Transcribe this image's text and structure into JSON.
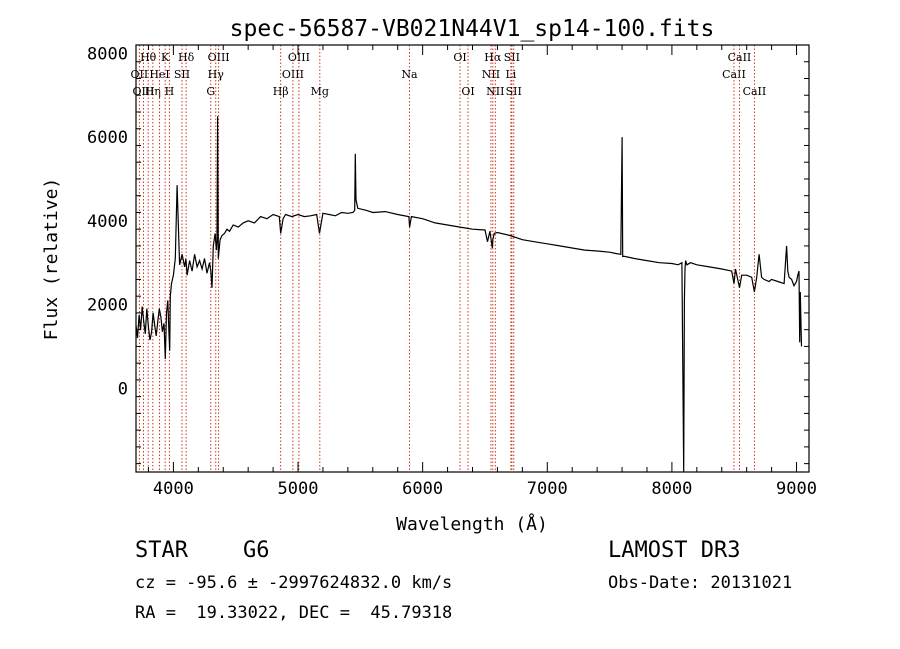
{
  "chart_data": {
    "type": "line",
    "title": "spec-56587-VB021N44V1_sp14-100.fits",
    "xlabel": "Wavelength (Å)",
    "ylabel": "Flux (relative)",
    "xlim": [
      3700,
      9100
    ],
    "ylim": [
      -2000,
      8200
    ],
    "xticks": [
      4000,
      5000,
      6000,
      7000,
      8000,
      9000
    ],
    "yticks": [
      0,
      2000,
      4000,
      6000,
      8000
    ],
    "grid": false,
    "series": [
      {
        "name": "spectrum",
        "x": [
          3700,
          3712,
          3725,
          3737,
          3750,
          3762,
          3775,
          3787,
          3800,
          3812,
          3825,
          3837,
          3850,
          3862,
          3875,
          3887,
          3900,
          3912,
          3925,
          3935,
          3945,
          3955,
          3965,
          3970,
          3975,
          3985,
          4000,
          4015,
          4030,
          4050,
          4070,
          4090,
          4100,
          4110,
          4130,
          4150,
          4170,
          4190,
          4210,
          4230,
          4250,
          4270,
          4290,
          4300,
          4310,
          4320,
          4335,
          4345,
          4350,
          4355,
          4360,
          4365,
          4375,
          4390,
          4410,
          4430,
          4450,
          4480,
          4520,
          4560,
          4600,
          4650,
          4700,
          4750,
          4800,
          4850,
          4861,
          4880,
          4900,
          4950,
          5000,
          5050,
          5100,
          5150,
          5172,
          5200,
          5250,
          5300,
          5350,
          5400,
          5440,
          5455,
          5460,
          5465,
          5480,
          5550,
          5600,
          5700,
          5800,
          5890,
          5895,
          5910,
          6000,
          6100,
          6200,
          6300,
          6400,
          6500,
          6520,
          6540,
          6560,
          6563,
          6575,
          6600,
          6700,
          6800,
          6900,
          7000,
          7100,
          7200,
          7300,
          7400,
          7500,
          7550,
          7590,
          7600,
          7605,
          7620,
          7700,
          7800,
          7900,
          8000,
          8050,
          8080,
          8095,
          8100,
          8105,
          8110,
          8120,
          8150,
          8200,
          8300,
          8400,
          8480,
          8498,
          8510,
          8542,
          8560,
          8600,
          8640,
          8662,
          8680,
          8700,
          8720,
          8740,
          8780,
          8800,
          8850,
          8900,
          8920,
          8930,
          8940,
          8960,
          8980,
          9000,
          9010,
          9020,
          9025,
          9030,
          9040
        ],
        "values": [
          1500,
          1200,
          1750,
          1400,
          1950,
          1600,
          1300,
          1900,
          1450,
          1150,
          1350,
          1800,
          1500,
          1250,
          1600,
          1900,
          1700,
          1350,
          1550,
          700,
          1800,
          2100,
          1300,
          900,
          2200,
          2500,
          2700,
          3100,
          4850,
          2950,
          3200,
          2900,
          3100,
          2700,
          3050,
          2800,
          3200,
          2900,
          3050,
          2850,
          3100,
          2750,
          3000,
          2800,
          2400,
          3400,
          3700,
          3300,
          3500,
          6500,
          3100,
          3250,
          3550,
          3650,
          3700,
          3800,
          3750,
          3900,
          3850,
          3950,
          4000,
          3950,
          4100,
          4050,
          4150,
          4100,
          3700,
          4050,
          4150,
          4100,
          4150,
          4100,
          4120,
          4150,
          3700,
          4180,
          4150,
          4120,
          4200,
          4180,
          4200,
          4250,
          5600,
          4500,
          4300,
          4250,
          4200,
          4220,
          4150,
          4100,
          3850,
          4100,
          4050,
          3950,
          3900,
          3850,
          3800,
          3780,
          3500,
          3750,
          3350,
          3550,
          3700,
          3720,
          3650,
          3550,
          3500,
          3450,
          3400,
          3350,
          3300,
          3280,
          3250,
          3220,
          3200,
          6000,
          3150,
          3150,
          3100,
          3050,
          3000,
          2980,
          2950,
          3000,
          -2000,
          2100,
          2850,
          3050,
          2950,
          3000,
          2950,
          2900,
          2850,
          2800,
          2500,
          2850,
          2400,
          2700,
          2700,
          2650,
          2300,
          2650,
          3200,
          2650,
          2600,
          2550,
          2600,
          2550,
          2500,
          3400,
          2800,
          2650,
          2600,
          2450,
          2550,
          2700,
          2800,
          1100,
          2300,
          1000
        ]
      }
    ],
    "lines": [
      {
        "label": "OII",
        "wl": 3727,
        "row": 2
      },
      {
        "label": "OIII",
        "wl": 3760,
        "row": 3
      },
      {
        "label": "Hθ",
        "wl": 3798,
        "row": 1
      },
      {
        "label": "Hη",
        "wl": 3835,
        "row": 3
      },
      {
        "label": "HeI",
        "wl": 3889,
        "row": 2
      },
      {
        "label": "K",
        "wl": 3934,
        "row": 1
      },
      {
        "label": "H",
        "wl": 3968,
        "row": 3
      },
      {
        "label": "SII",
        "wl": 4069,
        "row": 2
      },
      {
        "label": "Hδ",
        "wl": 4102,
        "row": 1
      },
      {
        "label": "G",
        "wl": 4300,
        "row": 3
      },
      {
        "label": "Hγ",
        "wl": 4340,
        "row": 2
      },
      {
        "label": "OIII",
        "wl": 4363,
        "row": 1
      },
      {
        "label": "Hβ",
        "wl": 4861,
        "row": 3
      },
      {
        "label": "OIII",
        "wl": 4959,
        "row": 2
      },
      {
        "label": "OIII",
        "wl": 5007,
        "row": 1
      },
      {
        "label": "Mg",
        "wl": 5175,
        "row": 3
      },
      {
        "label": "Na",
        "wl": 5894,
        "row": 2
      },
      {
        "label": "OI",
        "wl": 6300,
        "row": 1
      },
      {
        "label": "OI",
        "wl": 6364,
        "row": 3
      },
      {
        "label": "NII",
        "wl": 6548,
        "row": 2
      },
      {
        "label": "Hα",
        "wl": 6563,
        "row": 1
      },
      {
        "label": "NII",
        "wl": 6583,
        "row": 3
      },
      {
        "label": "Li",
        "wl": 6708,
        "row": 2
      },
      {
        "label": "SII",
        "wl": 6716,
        "row": 1
      },
      {
        "label": "SII",
        "wl": 6731,
        "row": 3
      },
      {
        "label": "CaII",
        "wl": 8498,
        "row": 2
      },
      {
        "label": "CaII",
        "wl": 8542,
        "row": 1
      },
      {
        "label": "CaII",
        "wl": 8662,
        "row": 3
      }
    ]
  },
  "info": {
    "class": "STAR",
    "subclass": "G6",
    "survey": "LAMOST DR3",
    "cz": "cz = -95.6 ± -2997624832.0 km/s",
    "obsdate": "Obs-Date: 20131021",
    "coords": "RA =  19.33022, DEC =  45.79318"
  },
  "colors": {
    "axes": "#000000",
    "spectrum": "#000000",
    "line_markers": "#cc2200"
  }
}
